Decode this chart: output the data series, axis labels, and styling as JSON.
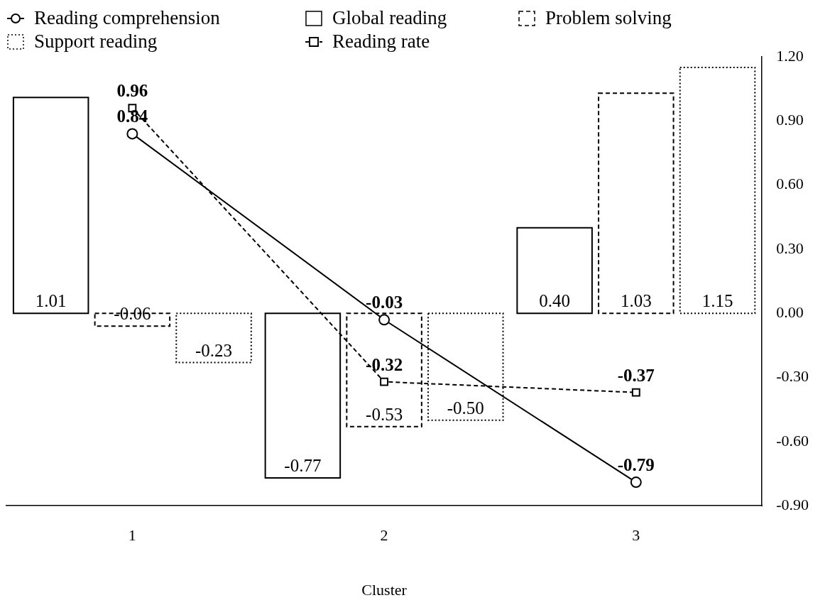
{
  "chart_data": {
    "type": "bar",
    "xlabel": "Cluster",
    "categories": [
      "1",
      "2",
      "3"
    ],
    "legend": "top left",
    "grid": false,
    "series": [
      {
        "name": "Reading comprehension",
        "type": "line",
        "color": "#000000",
        "line_style": "solid",
        "marker": "circle",
        "values": [
          0.84,
          -0.03,
          -0.79
        ],
        "value_labels": [
          "0.84",
          "-0.03",
          "-0.79"
        ]
      },
      {
        "name": "Global reading",
        "color": "#000000",
        "line_style": "solid",
        "values": [
          1.01,
          -0.77,
          0.4
        ],
        "value_labels": [
          "1.01",
          "-0.77",
          "0.40"
        ]
      },
      {
        "name": "Problem solving",
        "color": "#000000",
        "line_style": "dashed",
        "values": [
          -0.06,
          -0.53,
          1.03
        ],
        "value_labels": [
          "-0.06",
          "-0.53",
          "1.03"
        ]
      },
      {
        "name": "Support reading",
        "color": "#000000",
        "line_style": "dotted",
        "values": [
          -0.23,
          -0.5,
          1.15
        ],
        "value_labels": [
          "-0.23",
          "-0.50",
          "1.15"
        ]
      },
      {
        "name": "Reading rate",
        "type": "line",
        "color": "#000000",
        "line_style": "dashed",
        "marker": "square",
        "values": [
          0.96,
          -0.32,
          -0.37
        ],
        "value_labels": [
          "0.96",
          "-0.32",
          "-0.37"
        ]
      }
    ],
    "ylim": [
      -0.9,
      1.2
    ],
    "yticks": [
      {
        "value": -0.9,
        "label": "-0.90"
      },
      {
        "value": -0.6,
        "label": "-0.60"
      },
      {
        "value": -0.3,
        "label": "-0.30"
      },
      {
        "value": 0,
        "label": "0.00"
      },
      {
        "value": 0.3,
        "label": "0.30"
      },
      {
        "value": 0.6,
        "label": "0.60"
      },
      {
        "value": 0.9,
        "label": "0.90"
      },
      {
        "value": 1.2,
        "label": "1.20"
      }
    ]
  }
}
